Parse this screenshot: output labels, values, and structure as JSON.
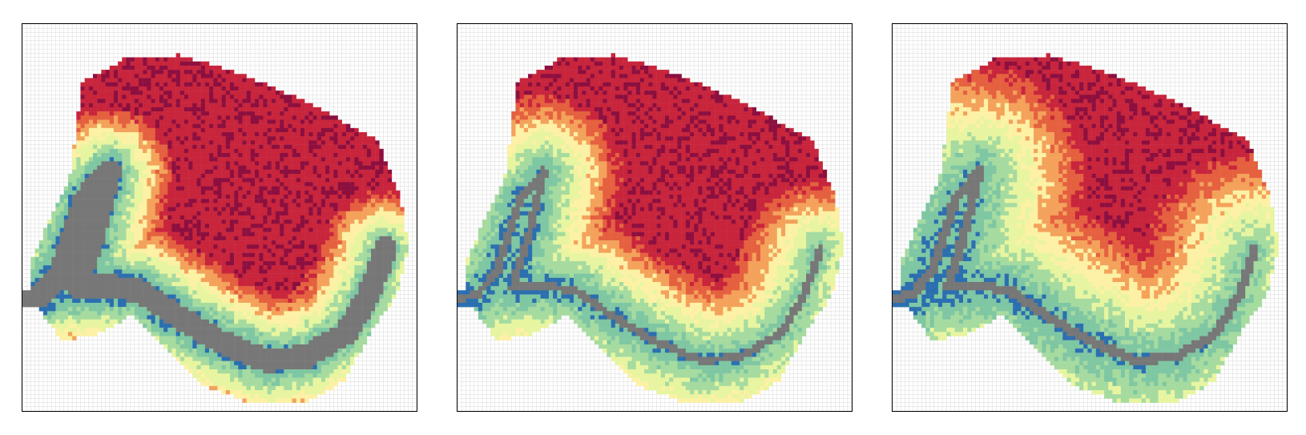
{
  "figure": {
    "panel_count": 3,
    "palette": {
      "background_grid": "#d9d9d9",
      "channel": "#777777",
      "deep": "#2b6fb0",
      "mid_deep": "#7fc7a3",
      "shallow": "#a6dba0",
      "low": "#e8f5a0",
      "pale": "#fdf1a5",
      "medium": "#f4a25b",
      "high": "#e5603f",
      "higher": "#c8253c",
      "highest": "#8c0f3f"
    }
  }
}
